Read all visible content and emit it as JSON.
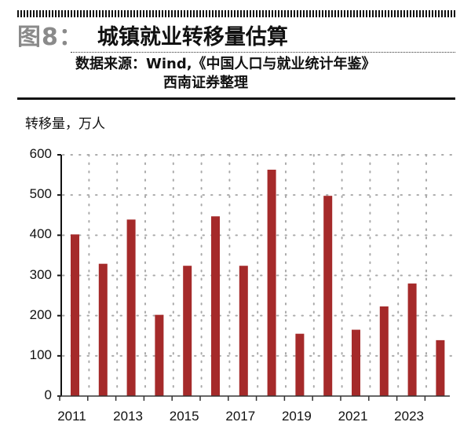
{
  "header": {
    "figure_label": "图8：",
    "title": "城镇就业转移量估算",
    "source_line1": "数据来源：Wind,《中国人口与就业统计年鉴》",
    "source_line2": "西南证券整理"
  },
  "chart_data": {
    "type": "bar",
    "title": "城镇就业转移量估算",
    "xlabel": "",
    "ylabel": "转移量，万人",
    "categories": [
      "2011",
      "2012",
      "2013",
      "2014",
      "2015",
      "2016",
      "2017",
      "2018",
      "2019",
      "2020",
      "2021",
      "2022",
      "2023",
      "2024"
    ],
    "values": [
      402,
      329,
      439,
      202,
      324,
      447,
      324,
      563,
      155,
      498,
      165,
      223,
      280,
      139
    ],
    "ylim": [
      0,
      600
    ],
    "yticks": [
      0,
      100,
      200,
      300,
      400,
      500,
      600
    ],
    "xtick_labels": [
      "2011",
      "2013",
      "2015",
      "2017",
      "2019",
      "2021",
      "2023"
    ],
    "grid": true,
    "legend": "none",
    "bar_color": "#a52a2a"
  }
}
